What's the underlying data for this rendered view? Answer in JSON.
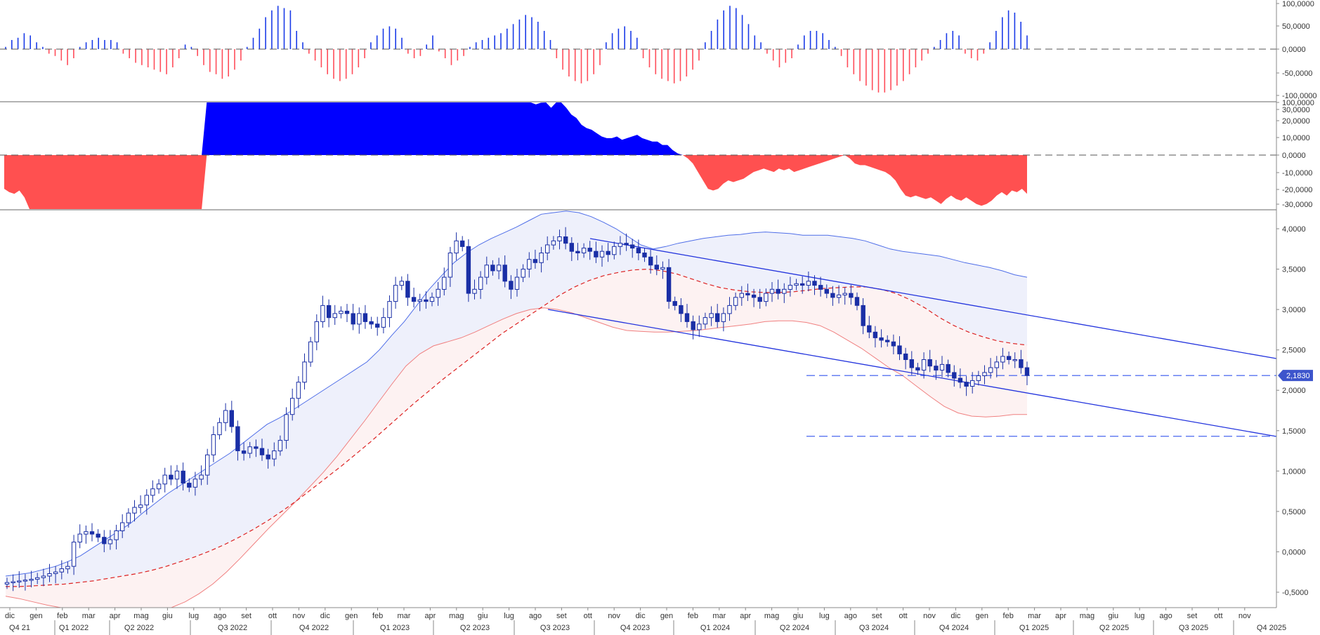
{
  "chart_data": [
    {
      "panel": "histogram-oscillator",
      "type": "bar",
      "ylim": [
        -100000,
        100000
      ],
      "y_ticks": [
        "100,0000",
        "50,0000",
        "0,0000",
        "-50,0000",
        "-100,0000"
      ],
      "colors": {
        "positive": "#1a3be8",
        "negative": "#ff4d5a"
      },
      "values": [
        5,
        20,
        25,
        35,
        30,
        15,
        5,
        -10,
        -15,
        -25,
        -35,
        -20,
        5,
        15,
        20,
        25,
        20,
        20,
        15,
        -10,
        -20,
        -30,
        -35,
        -40,
        -45,
        -50,
        -55,
        -40,
        -20,
        10,
        5,
        -15,
        -35,
        -50,
        -55,
        -65,
        -60,
        -45,
        -25,
        5,
        25,
        45,
        70,
        85,
        95,
        90,
        85,
        40,
        15,
        -10,
        -25,
        -40,
        -55,
        -65,
        -70,
        -65,
        -55,
        -40,
        -20,
        15,
        30,
        45,
        50,
        45,
        25,
        -10,
        -20,
        -15,
        10,
        30,
        -5,
        -20,
        -35,
        -25,
        -15,
        5,
        15,
        20,
        25,
        30,
        35,
        45,
        55,
        65,
        75,
        70,
        60,
        40,
        20,
        -20,
        -45,
        -60,
        -70,
        -75,
        -70,
        -55,
        -35,
        15,
        35,
        45,
        50,
        40,
        25,
        -20,
        -40,
        -55,
        -65,
        -70,
        -75,
        -70,
        -60,
        -45,
        -25,
        15,
        40,
        65,
        85,
        95,
        90,
        75,
        55,
        30,
        15,
        -10,
        -25,
        -40,
        -30,
        -20,
        10,
        30,
        40,
        40,
        35,
        20,
        5,
        -15,
        -40,
        -55,
        -70,
        -80,
        -90,
        -95,
        -95,
        -90,
        -80,
        -70,
        -55,
        -40,
        -25,
        -10,
        5,
        20,
        35,
        40,
        30,
        -10,
        -20,
        -25,
        -10,
        15,
        40,
        70,
        85,
        80,
        60,
        30
      ]
    },
    {
      "panel": "area-oscillator",
      "type": "area",
      "ylim": [
        -32000,
        32000
      ],
      "y_ticks": [
        "100,0000",
        "30,0000",
        "20,0000",
        "10,0000",
        "0,0000",
        "-10,0000",
        "-20,0000",
        "-30,0000"
      ],
      "colors": {
        "positive": "#0000ff",
        "negative": "#ff5050"
      },
      "values": [
        -20000,
        -22000,
        -23000,
        -21000,
        -25000,
        -32000,
        -32000,
        -32000,
        -32000,
        -32000,
        -32000,
        -32000,
        -32000,
        -32000,
        -32000,
        -32000,
        -32000,
        -32000,
        -32000,
        -32000,
        -32000,
        -32000,
        -32000,
        -32000,
        -32000,
        -32000,
        -32000,
        -32000,
        -32000,
        -32000,
        -32000,
        -32000,
        -32000,
        -32000,
        -32000,
        -32000,
        -32000,
        -32000,
        -32000,
        -32000,
        32000,
        32000,
        32000,
        32000,
        32000,
        32000,
        32000,
        32000,
        32000,
        32000,
        32000,
        32000,
        32000,
        32000,
        32000,
        32000,
        32000,
        32000,
        32000,
        32000,
        32000,
        32000,
        32000,
        32000,
        32000,
        32000,
        32000,
        32000,
        32000,
        32000,
        32000,
        32000,
        32000,
        32000,
        32000,
        32000,
        32000,
        32000,
        32000,
        32000,
        32000,
        32000,
        32000,
        32000,
        32000,
        32000,
        32000,
        32000,
        32000,
        32000,
        32000,
        32000,
        32000,
        32000,
        32000,
        32000,
        32000,
        32000,
        32000,
        32000,
        32000,
        32000,
        32000,
        32000,
        32000,
        30000,
        31000,
        32000,
        28000,
        32000,
        32000,
        28000,
        24000,
        22000,
        18000,
        16000,
        15000,
        13000,
        11000,
        10000,
        10000,
        11000,
        9000,
        10000,
        11000,
        12000,
        10000,
        9000,
        8000,
        8000,
        6000,
        6000,
        3000,
        1000,
        0,
        -2000,
        -5000,
        -10000,
        -15000,
        -20000,
        -21000,
        -20000,
        -17000,
        -15000,
        -16000,
        -15000,
        -14000,
        -12000,
        -10000,
        -9000,
        -8000,
        -9000,
        -10000,
        -8000,
        -9000,
        -8000,
        -10000,
        -9000,
        -8000,
        -7000,
        -6000,
        -5000,
        -4000,
        -3000,
        -2000,
        -1000,
        0,
        -2000,
        -5000,
        -6000,
        -6000,
        -7000,
        -8000,
        -9000,
        -10000,
        -12000,
        -15000,
        -20000,
        -24000,
        -25000,
        -24000,
        -25000,
        -26000,
        -25000,
        -27000,
        -29000,
        -26000,
        -24000,
        -26000,
        -27000,
        -25000,
        -27000,
        -29000,
        -30000,
        -29000,
        -27000,
        -24000,
        -22000,
        -24000,
        -21000,
        -22000,
        -20000,
        -23000
      ]
    },
    {
      "panel": "price",
      "type": "candlestick",
      "ylim": [
        -0.6,
        4.2
      ],
      "y_ticks": [
        "4,0000",
        "3,5000",
        "3,0000",
        "2,5000",
        "2,0000",
        "1,5000",
        "1,0000",
        "0,5000",
        "0,0000",
        "-0,5000"
      ],
      "last_price_label": "2,1830",
      "last_price": 2.183,
      "horizontal_levels": [
        2.183,
        1.43
      ],
      "colors": {
        "up_fill": "#ffffff",
        "down_fill": "#1a2fa6",
        "candle_border": "#1a2fa6",
        "upper_band": "#4f6ee8",
        "lower_band": "#f08080",
        "mid_line": "#dd2222",
        "band_fill_upper": "#eef0fb",
        "band_fill_lower": "#fdf2f2",
        "trendline": "#2233dd",
        "level_line": "#3355ee",
        "badge": "#3d55cc"
      },
      "closes": [
        -0.38,
        -0.37,
        -0.36,
        -0.35,
        -0.34,
        -0.32,
        -0.3,
        -0.27,
        -0.25,
        -0.21,
        -0.18,
        0.12,
        0.22,
        0.25,
        0.22,
        0.18,
        0.1,
        0.15,
        0.26,
        0.36,
        0.48,
        0.55,
        0.58,
        0.7,
        0.78,
        0.84,
        0.95,
        0.9,
        1.0,
        0.85,
        0.8,
        0.9,
        0.95,
        1.2,
        1.45,
        1.6,
        1.75,
        1.55,
        1.25,
        1.22,
        1.3,
        1.28,
        1.2,
        1.15,
        1.25,
        1.38,
        1.7,
        1.9,
        2.1,
        2.35,
        2.6,
        2.85,
        3.05,
        2.9,
        2.95,
        2.98,
        2.95,
        2.82,
        2.95,
        2.85,
        2.82,
        2.78,
        2.9,
        3.1,
        3.3,
        3.35,
        3.15,
        3.1,
        3.12,
        3.1,
        3.15,
        3.25,
        3.4,
        3.7,
        3.85,
        3.78,
        3.2,
        3.25,
        3.4,
        3.55,
        3.48,
        3.55,
        3.35,
        3.25,
        3.4,
        3.5,
        3.62,
        3.58,
        3.7,
        3.8,
        3.85,
        3.9,
        3.82,
        3.72,
        3.7,
        3.76,
        3.72,
        3.65,
        3.72,
        3.68,
        3.78,
        3.82,
        3.8,
        3.76,
        3.7,
        3.65,
        3.55,
        3.5,
        3.52,
        3.1,
        3.05,
        2.95,
        2.85,
        2.75,
        2.82,
        2.9,
        2.95,
        2.85,
        2.95,
        3.05,
        3.15,
        3.2,
        3.18,
        3.15,
        3.1,
        3.2,
        3.25,
        3.2,
        3.25,
        3.3,
        3.32,
        3.3,
        3.35,
        3.3,
        3.25,
        3.2,
        3.15,
        3.18,
        3.2,
        3.15,
        3.05,
        2.8,
        2.72,
        2.65,
        2.62,
        2.6,
        2.55,
        2.45,
        2.38,
        2.28,
        2.25,
        2.38,
        2.3,
        2.25,
        2.32,
        2.22,
        2.15,
        2.1,
        2.05,
        2.12,
        2.18,
        2.22,
        2.28,
        2.35,
        2.42,
        2.38,
        2.38,
        2.28,
        2.183
      ],
      "candle_dates_first": "dic 21",
      "upper_band": [
        -0.3,
        -0.28,
        -0.26,
        -0.22,
        -0.18,
        -0.12,
        -0.05,
        0.05,
        0.15,
        0.25,
        0.35,
        0.48,
        0.6,
        0.72,
        0.82,
        0.92,
        1.02,
        1.12,
        1.22,
        1.34,
        1.46,
        1.58,
        1.66,
        1.75,
        1.85,
        1.95,
        2.05,
        2.15,
        2.25,
        2.35,
        2.5,
        2.68,
        2.85,
        3.05,
        3.25,
        3.42,
        3.58,
        3.7,
        3.8,
        3.88,
        3.95,
        4.02,
        4.1,
        4.18,
        4.2,
        4.22,
        4.2,
        4.15,
        4.08,
        4.0,
        3.9,
        3.8,
        3.75,
        3.78,
        3.82,
        3.85,
        3.88,
        3.9,
        3.92,
        3.93,
        3.95,
        3.96,
        3.95,
        3.94,
        3.92,
        3.92,
        3.92,
        3.9,
        3.88,
        3.85,
        3.8,
        3.75,
        3.72,
        3.7,
        3.68,
        3.66,
        3.62,
        3.58,
        3.55,
        3.52,
        3.48,
        3.43,
        3.4
      ],
      "lower_band": [
        -0.55,
        -0.58,
        -0.62,
        -0.66,
        -0.7,
        -0.74,
        -0.78,
        -0.8,
        -0.82,
        -0.82,
        -0.8,
        -0.76,
        -0.7,
        -0.62,
        -0.52,
        -0.4,
        -0.25,
        -0.08,
        0.1,
        0.28,
        0.45,
        0.62,
        0.8,
        0.98,
        1.18,
        1.4,
        1.62,
        1.85,
        2.08,
        2.3,
        2.45,
        2.55,
        2.6,
        2.65,
        2.72,
        2.8,
        2.88,
        2.95,
        3.0,
        3.02,
        3.0,
        2.96,
        2.9,
        2.84,
        2.78,
        2.74,
        2.73,
        2.72,
        2.72,
        2.73,
        2.74,
        2.76,
        2.78,
        2.8,
        2.82,
        2.85,
        2.86,
        2.86,
        2.84,
        2.8,
        2.72,
        2.62,
        2.52,
        2.4,
        2.28,
        2.18,
        2.05,
        1.92,
        1.8,
        1.72,
        1.68,
        1.67,
        1.68,
        1.7,
        1.7
      ],
      "mid_band": [
        -0.43,
        -0.43,
        -0.42,
        -0.41,
        -0.4,
        -0.38,
        -0.36,
        -0.33,
        -0.3,
        -0.27,
        -0.23,
        -0.18,
        -0.12,
        -0.06,
        0.01,
        0.09,
        0.18,
        0.28,
        0.39,
        0.51,
        0.64,
        0.78,
        0.92,
        1.06,
        1.21,
        1.36,
        1.52,
        1.68,
        1.84,
        1.99,
        2.14,
        2.28,
        2.42,
        2.56,
        2.7,
        2.82,
        2.94,
        3.06,
        3.18,
        3.28,
        3.36,
        3.42,
        3.46,
        3.49,
        3.5,
        3.48,
        3.44,
        3.38,
        3.32,
        3.27,
        3.24,
        3.22,
        3.21,
        3.21,
        3.22,
        3.24,
        3.26,
        3.27,
        3.28,
        3.28,
        3.25,
        3.2,
        3.12,
        3.02,
        2.9,
        2.8,
        2.72,
        2.66,
        2.61,
        2.58,
        2.56
      ]
    }
  ],
  "x_axis": {
    "months": [
      "dic",
      "gen",
      "feb",
      "mar",
      "apr",
      "mag",
      "giu",
      "lug",
      "ago",
      "set",
      "ott",
      "nov",
      "dic",
      "gen",
      "feb",
      "mar",
      "apr",
      "mag",
      "giu",
      "lug",
      "ago",
      "set",
      "ott",
      "nov",
      "dic",
      "gen",
      "feb",
      "mar",
      "apr",
      "mag",
      "giu",
      "lug",
      "ago",
      "set",
      "ott",
      "nov",
      "dic",
      "gen",
      "feb",
      "mar",
      "apr",
      "mag",
      "giu",
      "lug",
      "ago",
      "set",
      "ott",
      "nov"
    ],
    "quarters": [
      "Q4 21",
      "Q1 2022",
      "Q2 2022",
      "Q3 2022",
      "Q4 2022",
      "Q1 2023",
      "Q2 2023",
      "Q3 2023",
      "Q4 2023",
      "Q1 2024",
      "Q2 2024",
      "Q3 2024",
      "Q4 2024",
      "Q1 2025",
      "Q2 2025",
      "Q3 2025",
      "Q4 2025"
    ]
  }
}
